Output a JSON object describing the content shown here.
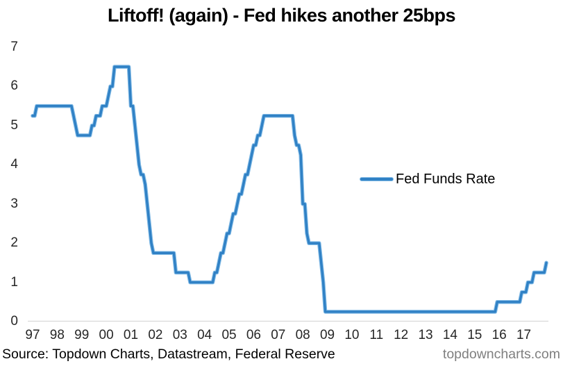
{
  "title": "Liftoff! (again) - Fed hikes another 25bps",
  "legend": {
    "label": "Fed Funds Rate"
  },
  "footer": {
    "source": "Source: Topdown Charts, Datastream, Federal Reserve",
    "watermark": "topdowncharts.com"
  },
  "colors": {
    "line_core": "#3081c5",
    "line_edge": "#85bce6",
    "axis_line": "#d9d9d9",
    "tick_text": "#262626",
    "title_text": "#000000",
    "watermark_text": "#7f7f7f"
  },
  "chart_data": {
    "type": "line",
    "title": "Liftoff! (again) - Fed hikes another 25bps",
    "xlabel": "",
    "ylabel": "",
    "ylim": [
      0,
      7
    ],
    "y_ticks": [
      0,
      1,
      2,
      3,
      4,
      5,
      6,
      7
    ],
    "x_tick_labels": [
      "97",
      "98",
      "99",
      "00",
      "01",
      "02",
      "03",
      "04",
      "05",
      "06",
      "07",
      "08",
      "09",
      "10",
      "11",
      "12",
      "13",
      "14",
      "15",
      "16",
      "17"
    ],
    "grid": "off",
    "legend_position": "center-right",
    "series": [
      {
        "name": "Fed Funds Rate",
        "frequency": "monthly",
        "start": "1997-01",
        "end": "2017-12",
        "years": [
          {
            "year": 1997,
            "values": [
              5.25,
              5.25,
              5.5,
              5.5,
              5.5,
              5.5,
              5.5,
              5.5,
              5.5,
              5.5,
              5.5,
              5.5
            ]
          },
          {
            "year": 1998,
            "values": [
              5.5,
              5.5,
              5.5,
              5.5,
              5.5,
              5.5,
              5.5,
              5.5,
              5.25,
              5.0,
              4.75,
              4.75
            ]
          },
          {
            "year": 1999,
            "values": [
              4.75,
              4.75,
              4.75,
              4.75,
              4.75,
              5.0,
              5.0,
              5.25,
              5.25,
              5.25,
              5.5,
              5.5
            ]
          },
          {
            "year": 2000,
            "values": [
              5.5,
              5.75,
              6.0,
              6.0,
              6.5,
              6.5,
              6.5,
              6.5,
              6.5,
              6.5,
              6.5,
              6.5
            ]
          },
          {
            "year": 2001,
            "values": [
              5.5,
              5.5,
              5.0,
              4.5,
              4.0,
              3.75,
              3.75,
              3.5,
              3.0,
              2.5,
              2.0,
              1.75
            ]
          },
          {
            "year": 2002,
            "values": [
              1.75,
              1.75,
              1.75,
              1.75,
              1.75,
              1.75,
              1.75,
              1.75,
              1.75,
              1.75,
              1.25,
              1.25
            ]
          },
          {
            "year": 2003,
            "values": [
              1.25,
              1.25,
              1.25,
              1.25,
              1.25,
              1.0,
              1.0,
              1.0,
              1.0,
              1.0,
              1.0,
              1.0
            ]
          },
          {
            "year": 2004,
            "values": [
              1.0,
              1.0,
              1.0,
              1.0,
              1.0,
              1.25,
              1.25,
              1.5,
              1.75,
              1.75,
              2.0,
              2.25
            ]
          },
          {
            "year": 2005,
            "values": [
              2.25,
              2.5,
              2.75,
              2.75,
              3.0,
              3.25,
              3.25,
              3.5,
              3.75,
              3.75,
              4.0,
              4.25
            ]
          },
          {
            "year": 2006,
            "values": [
              4.5,
              4.5,
              4.75,
              4.75,
              5.0,
              5.25,
              5.25,
              5.25,
              5.25,
              5.25,
              5.25,
              5.25
            ]
          },
          {
            "year": 2007,
            "values": [
              5.25,
              5.25,
              5.25,
              5.25,
              5.25,
              5.25,
              5.25,
              5.25,
              4.75,
              4.5,
              4.5,
              4.25
            ]
          },
          {
            "year": 2008,
            "values": [
              3.0,
              3.0,
              2.25,
              2.0,
              2.0,
              2.0,
              2.0,
              2.0,
              2.0,
              1.5,
              1.0,
              0.25
            ]
          },
          {
            "year": 2009,
            "values": [
              0.25,
              0.25,
              0.25,
              0.25,
              0.25,
              0.25,
              0.25,
              0.25,
              0.25,
              0.25,
              0.25,
              0.25
            ]
          },
          {
            "year": 2010,
            "values": [
              0.25,
              0.25,
              0.25,
              0.25,
              0.25,
              0.25,
              0.25,
              0.25,
              0.25,
              0.25,
              0.25,
              0.25
            ]
          },
          {
            "year": 2011,
            "values": [
              0.25,
              0.25,
              0.25,
              0.25,
              0.25,
              0.25,
              0.25,
              0.25,
              0.25,
              0.25,
              0.25,
              0.25
            ]
          },
          {
            "year": 2012,
            "values": [
              0.25,
              0.25,
              0.25,
              0.25,
              0.25,
              0.25,
              0.25,
              0.25,
              0.25,
              0.25,
              0.25,
              0.25
            ]
          },
          {
            "year": 2013,
            "values": [
              0.25,
              0.25,
              0.25,
              0.25,
              0.25,
              0.25,
              0.25,
              0.25,
              0.25,
              0.25,
              0.25,
              0.25
            ]
          },
          {
            "year": 2014,
            "values": [
              0.25,
              0.25,
              0.25,
              0.25,
              0.25,
              0.25,
              0.25,
              0.25,
              0.25,
              0.25,
              0.25,
              0.25
            ]
          },
          {
            "year": 2015,
            "values": [
              0.25,
              0.25,
              0.25,
              0.25,
              0.25,
              0.25,
              0.25,
              0.25,
              0.25,
              0.25,
              0.25,
              0.5
            ]
          },
          {
            "year": 2016,
            "values": [
              0.5,
              0.5,
              0.5,
              0.5,
              0.5,
              0.5,
              0.5,
              0.5,
              0.5,
              0.5,
              0.5,
              0.75
            ]
          },
          {
            "year": 2017,
            "values": [
              0.75,
              0.75,
              1.0,
              1.0,
              1.0,
              1.25,
              1.25,
              1.25,
              1.25,
              1.25,
              1.25,
              1.5
            ]
          }
        ]
      }
    ]
  }
}
